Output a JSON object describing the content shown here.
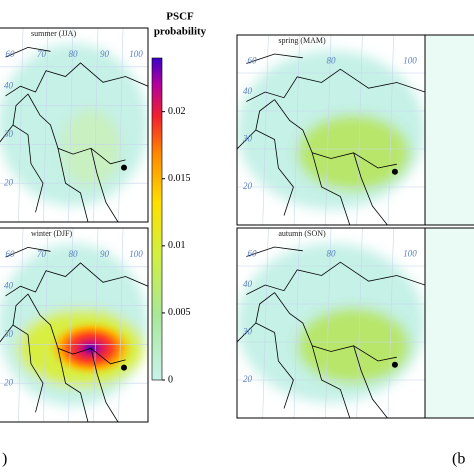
{
  "colorbar": {
    "title": "PSCF",
    "subtitle": "probability",
    "lim": [
      0,
      0.024
    ],
    "ticks": [
      0,
      0.005,
      0.01,
      0.015,
      0.02
    ]
  },
  "panels": [
    {
      "title": "summer (JJA)",
      "lon_labels": [
        "60",
        "70",
        "80",
        "90",
        "100"
      ],
      "lat_labels": [
        "40",
        "30",
        "20"
      ]
    },
    {
      "title": "winter (DJF)",
      "lon_labels": [
        "60",
        "70",
        "80",
        "90",
        "100"
      ],
      "lat_labels": [
        "40",
        "30",
        "20"
      ]
    },
    {
      "title": "spring (MAM)",
      "lon_labels": [
        "60",
        "80",
        "100"
      ],
      "lat_labels": [
        "40",
        "30",
        "20"
      ]
    },
    {
      "title": "autumn (SON)",
      "lon_labels": [
        "60",
        "80",
        "100"
      ],
      "lat_labels": [
        "40",
        "30",
        "20"
      ]
    }
  ],
  "figure_labels": [
    ")",
    "(b"
  ]
}
